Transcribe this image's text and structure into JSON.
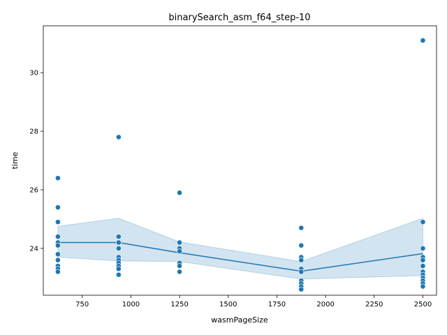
{
  "chart_data": {
    "type": "scatter",
    "title": "binarySearch_asm_f64_step-10",
    "xlabel": "wasmPageSize",
    "ylabel": "time",
    "xlim": [
      550,
      2570
    ],
    "ylim": [
      22.4,
      31.6
    ],
    "xticks": [
      750,
      1000,
      1250,
      1500,
      1750,
      2000,
      2250,
      2500
    ],
    "yticks": [
      24,
      26,
      28,
      30
    ],
    "grid": false,
    "colors": {
      "points": "#1f77b4",
      "line": "#1f77b4",
      "band": "#1f77b4"
    },
    "scatter_points": [
      {
        "x": 625,
        "y": 26.4
      },
      {
        "x": 625,
        "y": 25.4
      },
      {
        "x": 625,
        "y": 24.9
      },
      {
        "x": 625,
        "y": 24.4
      },
      {
        "x": 625,
        "y": 24.2
      },
      {
        "x": 625,
        "y": 24.1
      },
      {
        "x": 625,
        "y": 23.8
      },
      {
        "x": 625,
        "y": 23.6
      },
      {
        "x": 625,
        "y": 23.4
      },
      {
        "x": 625,
        "y": 23.3
      },
      {
        "x": 625,
        "y": 23.2
      },
      {
        "x": 937,
        "y": 27.8
      },
      {
        "x": 937,
        "y": 24.4
      },
      {
        "x": 937,
        "y": 24.2
      },
      {
        "x": 937,
        "y": 24.0
      },
      {
        "x": 937,
        "y": 23.7
      },
      {
        "x": 937,
        "y": 23.6
      },
      {
        "x": 937,
        "y": 23.5
      },
      {
        "x": 937,
        "y": 23.4
      },
      {
        "x": 937,
        "y": 23.3
      },
      {
        "x": 937,
        "y": 23.1
      },
      {
        "x": 1250,
        "y": 25.9
      },
      {
        "x": 1250,
        "y": 24.2
      },
      {
        "x": 1250,
        "y": 24.0
      },
      {
        "x": 1250,
        "y": 23.9
      },
      {
        "x": 1250,
        "y": 23.5
      },
      {
        "x": 1250,
        "y": 23.4
      },
      {
        "x": 1250,
        "y": 23.2
      },
      {
        "x": 1875,
        "y": 24.7
      },
      {
        "x": 1875,
        "y": 24.1
      },
      {
        "x": 1875,
        "y": 23.7
      },
      {
        "x": 1875,
        "y": 23.6
      },
      {
        "x": 1875,
        "y": 23.3
      },
      {
        "x": 1875,
        "y": 23.2
      },
      {
        "x": 1875,
        "y": 22.9
      },
      {
        "x": 1875,
        "y": 22.8
      },
      {
        "x": 1875,
        "y": 22.7
      },
      {
        "x": 1875,
        "y": 22.6
      },
      {
        "x": 2500,
        "y": 31.1
      },
      {
        "x": 2500,
        "y": 24.9
      },
      {
        "x": 2500,
        "y": 24.0
      },
      {
        "x": 2500,
        "y": 23.7
      },
      {
        "x": 2500,
        "y": 23.6
      },
      {
        "x": 2500,
        "y": 23.4
      },
      {
        "x": 2500,
        "y": 23.2
      },
      {
        "x": 2500,
        "y": 23.1
      },
      {
        "x": 2500,
        "y": 23.0
      },
      {
        "x": 2500,
        "y": 22.9
      },
      {
        "x": 2500,
        "y": 22.8
      },
      {
        "x": 2500,
        "y": 22.7
      }
    ],
    "mean_line": {
      "x": [
        625,
        937,
        1250,
        1875,
        2500
      ],
      "y": [
        24.2,
        24.2,
        23.85,
        23.22,
        23.82
      ]
    },
    "confidence_band": {
      "x": [
        625,
        937,
        1250,
        1875,
        2500
      ],
      "lower": [
        23.7,
        23.57,
        23.55,
        22.95,
        23.07
      ],
      "upper": [
        24.75,
        25.03,
        24.22,
        23.55,
        25.03
      ]
    }
  }
}
